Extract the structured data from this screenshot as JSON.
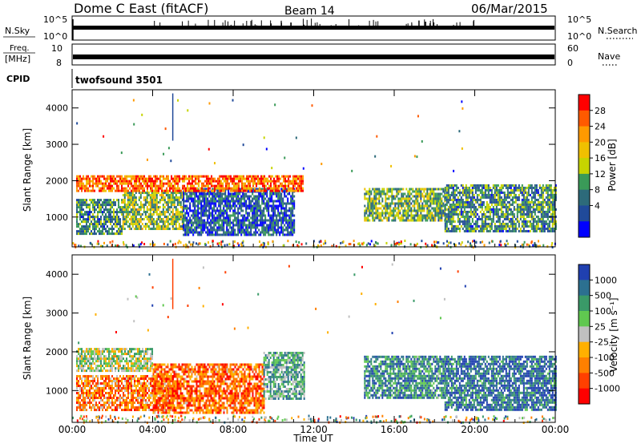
{
  "header": {
    "station": "Dome C East (fitACF)",
    "beam": "Beam 14",
    "date": "06/Mar/2015"
  },
  "top_panels": {
    "nsky": {
      "label": "N.Sky",
      "ticks": [
        "10^5",
        "10^0"
      ]
    },
    "nsearch": {
      "label": "N.Search",
      "ticks": [
        "10^5",
        "10^0"
      ]
    },
    "freq": {
      "label_line1": "Freq.",
      "label_line2": "[MHz]",
      "ticks": [
        "10",
        "8"
      ]
    },
    "nave": {
      "label": "Nave",
      "ticks": [
        "60",
        "0"
      ]
    },
    "cpid": {
      "label": "CPID",
      "value": "twofsound 3501"
    }
  },
  "chart_data": [
    {
      "type": "heatmap",
      "name": "Power",
      "ylabel": "Slant Range [km]",
      "ytick_labels": [
        "1000",
        "2000",
        "3000",
        "4000"
      ],
      "yticks": [
        1000,
        2000,
        3000,
        4000
      ],
      "ylim": [
        180,
        4500
      ],
      "xlim": [
        0,
        24
      ],
      "xticks": [
        0,
        4,
        8,
        12,
        16,
        20,
        24
      ],
      "xtick_labels": [
        "00:00",
        "04:00",
        "08:00",
        "12:00",
        "16:00",
        "20:00",
        "00:00"
      ],
      "colorbar": {
        "label": "Power [dB]",
        "ticks": [
          "28",
          "24",
          "20",
          "16",
          "12",
          "8",
          "4"
        ],
        "colors": [
          "#ff0000",
          "#ff5a00",
          "#ff9a00",
          "#f0c000",
          "#c6d400",
          "#3a9a58",
          "#2d6a7a",
          "#204a9a",
          "#0000ff"
        ]
      },
      "regions": [
        {
          "x": [
            0.2,
            2.5
          ],
          "y": [
            550,
            1500
          ],
          "level": 0.7
        },
        {
          "x": [
            2.5,
            5.5
          ],
          "y": [
            700,
            1700
          ],
          "level": 0.55
        },
        {
          "x": [
            5.5,
            11.0
          ],
          "y": [
            500,
            1800
          ],
          "level": 0.85
        },
        {
          "x": [
            0.2,
            11.5
          ],
          "y": [
            1700,
            2150
          ],
          "level": 0.15
        },
        {
          "x": [
            14.5,
            18.5
          ],
          "y": [
            900,
            1800
          ],
          "level": 0.6
        },
        {
          "x": [
            18.5,
            24.0
          ],
          "y": [
            600,
            1900
          ],
          "level": 0.7
        }
      ]
    },
    {
      "type": "heatmap",
      "name": "Velocity",
      "ylabel": "Slant Range [km]",
      "ytick_labels": [
        "1000",
        "2000",
        "3000",
        "4000"
      ],
      "yticks": [
        1000,
        2000,
        3000,
        4000
      ],
      "ylim": [
        180,
        4500
      ],
      "xlim": [
        0,
        24
      ],
      "xticks": [
        0,
        4,
        8,
        12,
        16,
        20,
        24
      ],
      "xtick_labels": [
        "00:00",
        "04:00",
        "08:00",
        "12:00",
        "16:00",
        "20:00",
        "00:00"
      ],
      "xlabel": "Time UT",
      "colorbar": {
        "label": "Velocity [m s⁻¹]",
        "ticks": [
          "1000",
          "500",
          "100",
          "25",
          "-25",
          "-100",
          "-500",
          "-1000"
        ],
        "colors": [
          "#2040b0",
          "#2c7090",
          "#3a9a68",
          "#60c850",
          "#c0c0c0",
          "#ffb000",
          "#ff8000",
          "#ff4000",
          "#ff0000"
        ]
      },
      "regions": [
        {
          "x": [
            0.2,
            5.0
          ],
          "y": [
            500,
            1400
          ],
          "level": 0.75
        },
        {
          "x": [
            0.2,
            4.0
          ],
          "y": [
            1500,
            2100
          ],
          "level": 0.45
        },
        {
          "x": [
            4.0,
            9.5
          ],
          "y": [
            450,
            1700
          ],
          "level": 0.8
        },
        {
          "x": [
            9.5,
            11.5
          ],
          "y": [
            800,
            2000
          ],
          "level": 0.3
        },
        {
          "x": [
            14.5,
            18.5
          ],
          "y": [
            800,
            1900
          ],
          "level": 0.2
        },
        {
          "x": [
            18.5,
            24.0
          ],
          "y": [
            500,
            1900
          ],
          "level": 0.1
        }
      ]
    }
  ]
}
